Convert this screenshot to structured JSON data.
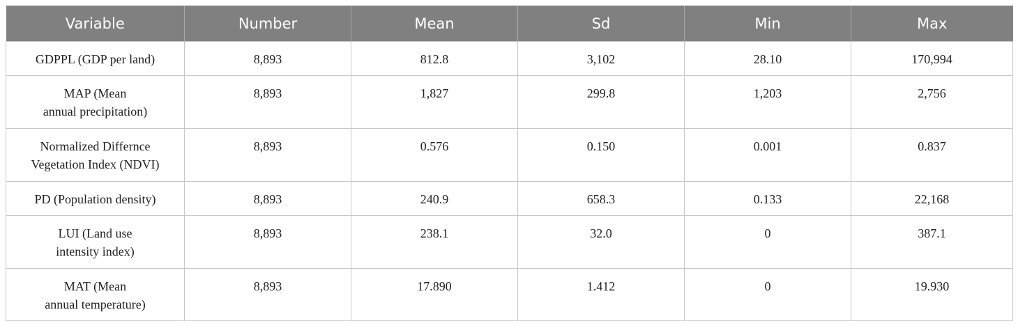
{
  "table": {
    "header": [
      "Variable",
      "Number",
      "Mean",
      "Sd",
      "Min",
      "Max"
    ],
    "rows": [
      [
        [
          "GDPPL (GDP per land)"
        ],
        "8,893",
        "812.8",
        "3,102",
        "28.10",
        "170,994"
      ],
      [
        [
          "MAP (Mean",
          "annual precipitation)"
        ],
        "8,893",
        "1,827",
        "299.8",
        "1,203",
        "2,756"
      ],
      [
        [
          "Normalized Differnce",
          "Vegetation Index (NDVI)"
        ],
        "8,893",
        "0.576",
        "0.150",
        "0.001",
        "0.837"
      ],
      [
        [
          "PD (Population density)"
        ],
        "8,893",
        "240.9",
        "658.3",
        "0.133",
        "22,168"
      ],
      [
        [
          "LUI (Land use",
          "intensity index)"
        ],
        "8,893",
        "238.1",
        "32.0",
        "0",
        "387.1"
      ],
      [
        [
          "MAT (Mean",
          "annual temperature)"
        ],
        "8,893",
        "17.890",
        "1.412",
        "0",
        "19.930"
      ]
    ]
  }
}
